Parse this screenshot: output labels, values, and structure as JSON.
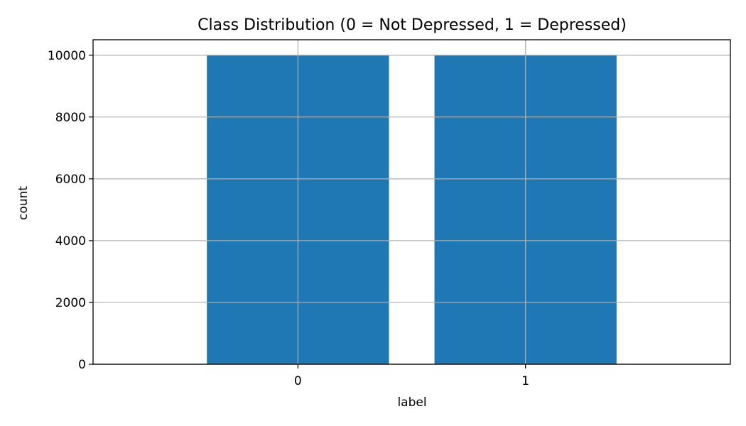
{
  "chart_data": {
    "type": "bar",
    "title": "Class Distribution (0 = Not Depressed, 1 = Depressed)",
    "xlabel": "label",
    "ylabel": "count",
    "categories": [
      "0",
      "1"
    ],
    "values": [
      10000,
      10000
    ],
    "ylim": [
      0,
      10500
    ],
    "yticks": [
      0,
      2000,
      4000,
      6000,
      8000,
      10000
    ],
    "grid": true,
    "bar_color": "#1f77b4"
  }
}
